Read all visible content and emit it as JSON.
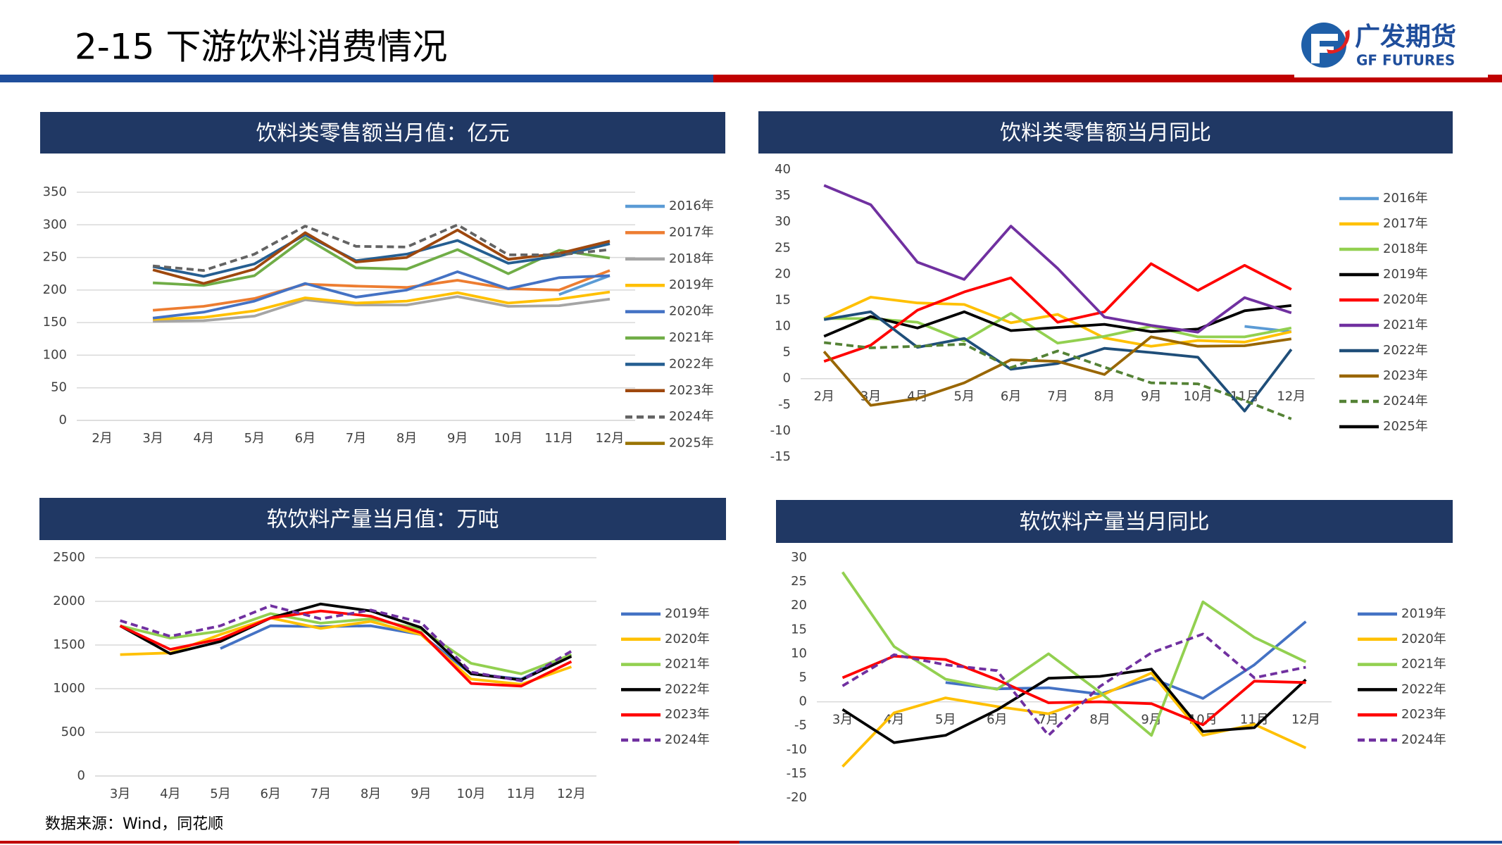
{
  "header": {
    "title": "2-15 下游饮料消费情况",
    "logo_cn": "广发期货",
    "logo_en": "GF FUTURES"
  },
  "source": "数据来源：Wind，同花顺",
  "chart_data": [
    {
      "type": "line",
      "title": "饮料类零售额当月值：亿元",
      "categories": [
        "2月",
        "3月",
        "4月",
        "5月",
        "6月",
        "7月",
        "8月",
        "9月",
        "10月",
        "11月",
        "12月"
      ],
      "ylim": [
        0,
        350
      ],
      "yticks": [
        0,
        50,
        100,
        150,
        200,
        250,
        300,
        350
      ],
      "grid": true,
      "series": [
        {
          "name": "2016年",
          "color": "#5b9bd5",
          "values": [
            null,
            null,
            null,
            null,
            null,
            null,
            null,
            null,
            null,
            193,
            222
          ]
        },
        {
          "name": "2017年",
          "color": "#ed7d31",
          "values": [
            null,
            169,
            175,
            187,
            209,
            206,
            204,
            215,
            202,
            200,
            230
          ]
        },
        {
          "name": "2018年",
          "color": "#a5a5a5",
          "values": [
            null,
            152,
            153,
            160,
            185,
            177,
            177,
            190,
            175,
            176,
            186
          ]
        },
        {
          "name": "2019年",
          "color": "#ffc000",
          "values": [
            null,
            155,
            158,
            168,
            188,
            180,
            183,
            196,
            180,
            186,
            197
          ]
        },
        {
          "name": "2020年",
          "color": "#4472c4",
          "values": [
            null,
            157,
            166,
            183,
            210,
            189,
            200,
            228,
            202,
            219,
            222
          ]
        },
        {
          "name": "2021年",
          "color": "#70ad47",
          "values": [
            null,
            211,
            207,
            222,
            280,
            234,
            232,
            262,
            225,
            261,
            249
          ]
        },
        {
          "name": "2022年",
          "color": "#255e91",
          "values": [
            null,
            236,
            221,
            240,
            285,
            245,
            255,
            276,
            241,
            252,
            271
          ]
        },
        {
          "name": "2023年",
          "color": "#9e480e",
          "values": [
            null,
            231,
            210,
            232,
            288,
            243,
            250,
            292,
            247,
            256,
            275
          ]
        },
        {
          "name": "2024年",
          "color": "#636363",
          "dash": true,
          "values": [
            null,
            237,
            230,
            255,
            298,
            267,
            266,
            300,
            254,
            254,
            262
          ]
        },
        {
          "name": "2025年",
          "color": "#997300",
          "values": [
            null,
            null,
            null,
            null,
            null,
            null,
            null,
            null,
            null,
            null,
            null
          ]
        }
      ]
    },
    {
      "type": "line",
      "title": "饮料类零售额当月同比",
      "categories": [
        "2月",
        "3月",
        "4月",
        "5月",
        "6月",
        "7月",
        "8月",
        "9月",
        "10月",
        "11月",
        "12月"
      ],
      "ylim": [
        -15,
        40
      ],
      "yticks": [
        -15,
        -10,
        -5,
        0,
        5,
        10,
        15,
        20,
        25,
        30,
        35,
        40
      ],
      "grid": false,
      "series": [
        {
          "name": "2016年",
          "color": "#5b9bd5",
          "values": [
            null,
            null,
            null,
            null,
            null,
            null,
            null,
            null,
            null,
            10,
            9
          ]
        },
        {
          "name": "2017年",
          "color": "#ffc000",
          "values": [
            11.5,
            15.6,
            14.5,
            14.2,
            10.7,
            12.3,
            7.8,
            6.2,
            7.3,
            7.0,
            9.0
          ]
        },
        {
          "name": "2018年",
          "color": "#92d050",
          "values": [
            11.5,
            11.5,
            10.8,
            7.2,
            12.5,
            6.8,
            8.1,
            10.0,
            8.0,
            8.0,
            9.7
          ]
        },
        {
          "name": "2019年",
          "color": "#000000",
          "values": [
            8.1,
            11.9,
            9.7,
            12.8,
            9.2,
            9.8,
            10.4,
            9.0,
            9.5,
            13.0,
            14.0
          ]
        },
        {
          "name": "2020年",
          "color": "#ff0000",
          "values": [
            3.3,
            6.4,
            13.1,
            16.6,
            19.3,
            10.8,
            12.8,
            22.0,
            16.9,
            21.7,
            17.1
          ]
        },
        {
          "name": "2021年",
          "color": "#7030a0",
          "values": [
            37,
            33.3,
            22.3,
            19.0,
            29.2,
            21.1,
            11.8,
            10.2,
            8.9,
            15.5,
            12.6
          ]
        },
        {
          "name": "2022年",
          "color": "#1f4e79",
          "values": [
            11.3,
            12.8,
            6.0,
            7.7,
            1.8,
            2.9,
            5.8,
            5.0,
            4.1,
            -6.2,
            5.6
          ]
        },
        {
          "name": "2023年",
          "color": "#996600",
          "values": [
            5.2,
            -5.1,
            -3.8,
            -0.8,
            3.6,
            3.3,
            0.8,
            8.0,
            6.2,
            6.3,
            7.6
          ]
        },
        {
          "name": "2024年",
          "color": "#548235",
          "dash": true,
          "values": [
            6.9,
            5.9,
            6.2,
            6.6,
            2.1,
            5.3,
            2.2,
            -0.8,
            -1.0,
            -4.2,
            -7.7
          ]
        },
        {
          "name": "2025年",
          "color": "#000000",
          "values": [
            null,
            null,
            null,
            null,
            null,
            null,
            null,
            null,
            null,
            null,
            null
          ]
        }
      ]
    },
    {
      "type": "line",
      "title": "软饮料产量当月值：万吨",
      "categories": [
        "3月",
        "4月",
        "5月",
        "6月",
        "7月",
        "8月",
        "9月",
        "10月",
        "11月",
        "12月"
      ],
      "ylim": [
        0,
        2500
      ],
      "yticks": [
        0,
        500,
        1000,
        1500,
        2000,
        2500
      ],
      "grid": true,
      "series": [
        {
          "name": "2019年",
          "color": "#4472c4",
          "values": [
            null,
            null,
            1460,
            1720,
            1710,
            1720,
            1620,
            1170,
            1110,
            1390
          ]
        },
        {
          "name": "2020年",
          "color": "#ffc000",
          "values": [
            1390,
            1410,
            1620,
            1810,
            1690,
            1770,
            1620,
            1110,
            1050,
            1250
          ]
        },
        {
          "name": "2021年",
          "color": "#92d050",
          "values": [
            1720,
            1580,
            1660,
            1860,
            1750,
            1800,
            1680,
            1290,
            1170,
            1390
          ]
        },
        {
          "name": "2022年",
          "color": "#000000",
          "values": [
            1720,
            1400,
            1540,
            1810,
            1970,
            1890,
            1700,
            1170,
            1100,
            1370
          ]
        },
        {
          "name": "2023年",
          "color": "#ff0000",
          "values": [
            1720,
            1450,
            1570,
            1810,
            1890,
            1830,
            1640,
            1060,
            1030,
            1310
          ]
        },
        {
          "name": "2024年",
          "color": "#7030a0",
          "dash": true,
          "values": [
            1780,
            1600,
            1720,
            1950,
            1800,
            1900,
            1760,
            1190,
            1090,
            1430
          ]
        }
      ]
    },
    {
      "type": "line",
      "title": "软饮料产量当月同比",
      "categories": [
        "3月",
        "4月",
        "5月",
        "6月",
        "7月",
        "8月",
        "9月",
        "10月",
        "11月",
        "12月"
      ],
      "ylim": [
        -20,
        30
      ],
      "yticks": [
        -20,
        -15,
        -10,
        -5,
        0,
        5,
        10,
        15,
        20,
        25,
        30
      ],
      "grid": false,
      "series": [
        {
          "name": "2019年",
          "color": "#4472c4",
          "values": [
            null,
            null,
            4.0,
            2.7,
            2.9,
            1.6,
            4.9,
            0.7,
            7.7,
            16.7
          ]
        },
        {
          "name": "2020年",
          "color": "#ffc000",
          "values": [
            -13.5,
            -2.3,
            0.8,
            -1.0,
            -2.5,
            1.2,
            6.0,
            -7.0,
            -4.7,
            -9.6
          ]
        },
        {
          "name": "2021年",
          "color": "#92d050",
          "values": [
            27.0,
            11.5,
            4.7,
            2.6,
            10.0,
            2.0,
            -7.0,
            20.8,
            13.4,
            8.3
          ]
        },
        {
          "name": "2022年",
          "color": "#000000",
          "values": [
            -1.6,
            -8.5,
            -7.0,
            -1.7,
            4.9,
            5.3,
            6.8,
            -6.2,
            -5.4,
            4.6
          ]
        },
        {
          "name": "2023年",
          "color": "#ff0000",
          "values": [
            5.0,
            9.5,
            8.8,
            4.6,
            -0.2,
            0.0,
            -0.4,
            -4.8,
            4.3,
            4.0
          ]
        },
        {
          "name": "2024年",
          "color": "#7030a0",
          "dash": true,
          "values": [
            3.3,
            9.8,
            7.7,
            6.5,
            -7.0,
            3.2,
            10.2,
            14.1,
            5.0,
            7.2
          ]
        }
      ]
    }
  ]
}
